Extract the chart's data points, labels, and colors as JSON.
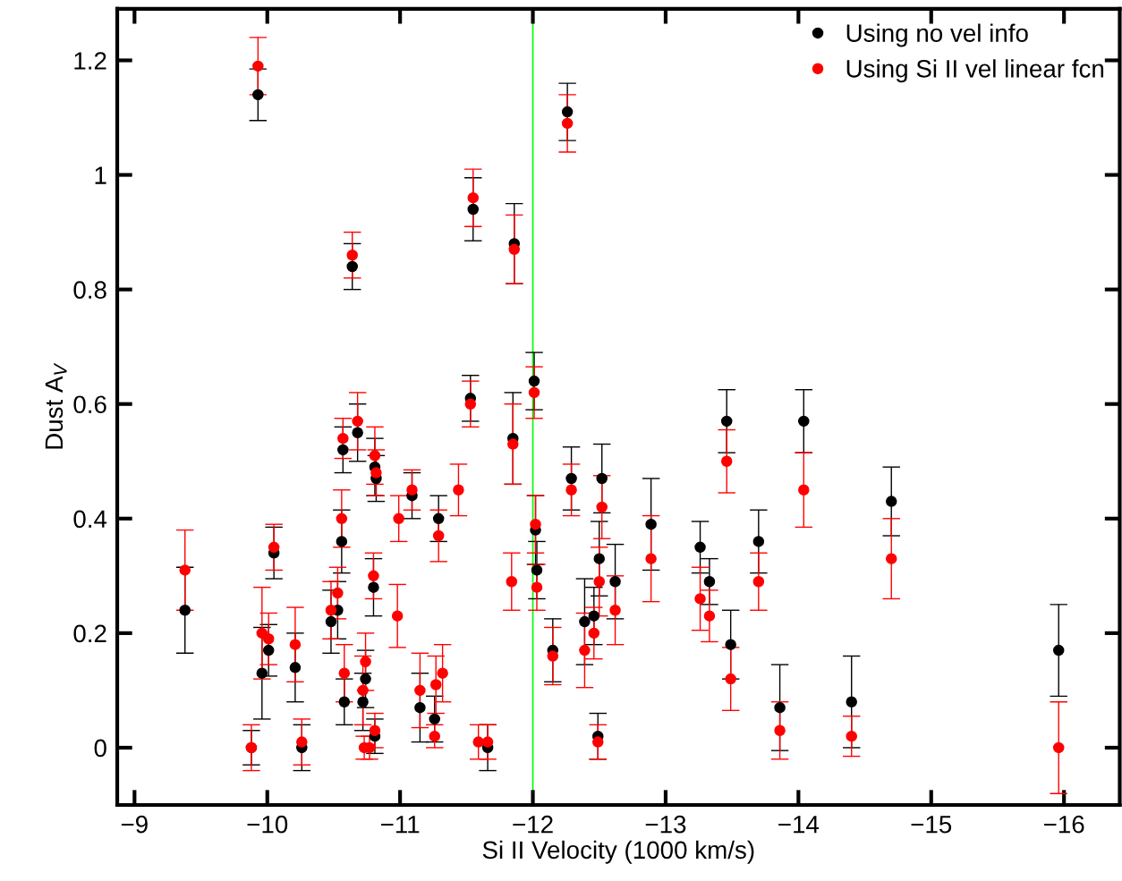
{
  "chart_data": {
    "type": "scatter",
    "xlabel": "Si II Velocity (1000 km/s)",
    "ylabel": "Dust A$_{V}$",
    "x": [
      -9.38,
      -9.88,
      -9.93,
      -9.96,
      -10.01,
      -10.05,
      -10.21,
      -10.26,
      -10.48,
      -10.53,
      -10.56,
      -10.57,
      -10.58,
      -10.64,
      -10.68,
      -10.72,
      -10.73,
      -10.74,
      -10.77,
      -10.8,
      -10.81,
      -10.81,
      -10.82,
      -10.98,
      -10.99,
      -11.09,
      -11.15,
      -11.26,
      -11.26,
      -11.27,
      -11.29,
      -11.32,
      -11.44,
      -11.53,
      -11.55,
      -11.59,
      -11.66,
      -11.84,
      -11.85,
      -11.86,
      -12.01,
      -12.02,
      -12.03,
      -12.15,
      -12.26,
      -12.29,
      -12.39,
      -12.46,
      -12.49,
      -12.5,
      -12.52,
      -12.62,
      -12.89,
      -13.26,
      -13.33,
      -13.46,
      -13.49,
      -13.7,
      -13.86,
      -14.04,
      -14.4,
      -14.7,
      -15.96
    ],
    "series": [
      {
        "name": "Using no vel info",
        "color": "#000000",
        "values": [
          0.24,
          0,
          1.14,
          0.13,
          0.17,
          0.34,
          0.14,
          0,
          0.22,
          0.24,
          0.36,
          0.52,
          0.08,
          0.84,
          0.55,
          0.08,
          null,
          0.12,
          null,
          0.28,
          0.02,
          0.49,
          0.47,
          null,
          null,
          0.44,
          0.07,
          0.05,
          null,
          null,
          0.4,
          null,
          null,
          0.61,
          0.94,
          null,
          0,
          null,
          0.54,
          0.88,
          0.64,
          0.38,
          0.31,
          0.17,
          1.11,
          0.47,
          0.22,
          0.23,
          0.02,
          0.33,
          0.47,
          0.29,
          0.39,
          0.35,
          0.29,
          0.57,
          0.18,
          0.36,
          0.07,
          0.57,
          0.08,
          0.43,
          0.17
        ],
        "errors": [
          0.075,
          0.03,
          0.045,
          0.08,
          0.045,
          0.045,
          0.06,
          0.04,
          0.055,
          0.05,
          0.055,
          0.04,
          0.04,
          0.04,
          0.05,
          0.05,
          null,
          0.05,
          null,
          0.05,
          0.03,
          0.05,
          0.04,
          null,
          null,
          0.04,
          0.06,
          0.04,
          null,
          null,
          0.04,
          null,
          null,
          0.04,
          0.055,
          null,
          0.04,
          null,
          0.08,
          0.07,
          0.05,
          0.06,
          0.05,
          0.055,
          0.05,
          0.055,
          0.075,
          0.05,
          0.04,
          0.065,
          0.06,
          0.065,
          0.08,
          0.045,
          0.04,
          0.055,
          0.06,
          0.055,
          0.075,
          0.055,
          0.08,
          0.06,
          0.08
        ]
      },
      {
        "name": "Using Si II vel linear fcn",
        "color": "#ff0000",
        "values": [
          0.31,
          0,
          1.19,
          0.2,
          0.19,
          0.35,
          0.18,
          0.01,
          0.24,
          0.27,
          0.4,
          0.54,
          0.13,
          0.86,
          0.57,
          0.1,
          0,
          0.15,
          0,
          0.3,
          0.03,
          0.51,
          0.48,
          0.23,
          0.4,
          0.45,
          0.1,
          null,
          0.02,
          0.11,
          0.37,
          0.13,
          0.45,
          0.6,
          0.96,
          0.01,
          0.01,
          0.29,
          0.53,
          0.87,
          0.62,
          0.39,
          0.28,
          0.16,
          1.09,
          0.45,
          0.17,
          0.2,
          0.01,
          0.29,
          0.42,
          0.24,
          0.33,
          0.26,
          0.23,
          0.5,
          0.12,
          0.29,
          0.03,
          0.45,
          0.02,
          0.33,
          0
        ],
        "errors": [
          0.07,
          0.04,
          0.05,
          0.08,
          0.045,
          0.04,
          0.065,
          0.04,
          0.05,
          0.045,
          0.05,
          0.035,
          0.05,
          0.04,
          0.05,
          0.06,
          0.02,
          0.05,
          0.02,
          0.04,
          0.03,
          0.05,
          0.04,
          0.055,
          0.04,
          0.035,
          0.065,
          null,
          0.02,
          0.05,
          0.045,
          0.05,
          0.045,
          0.04,
          0.05,
          0.03,
          0.03,
          0.05,
          0.07,
          0.06,
          0.045,
          0.05,
          0.04,
          0.05,
          0.05,
          0.045,
          0.065,
          0.045,
          0.03,
          0.06,
          0.055,
          0.06,
          0.075,
          0.055,
          0.045,
          0.055,
          0.055,
          0.05,
          0.05,
          0.065,
          0.035,
          0.07,
          0.08
        ]
      }
    ],
    "xlim": [
      -8.87,
      -16.42
    ],
    "ylim": [
      -0.1,
      1.29
    ],
    "xticks": [
      {
        "value": -9,
        "label": "−9"
      },
      {
        "value": -10,
        "label": "−10"
      },
      {
        "value": -11,
        "label": "−11"
      },
      {
        "value": -12,
        "label": "−12"
      },
      {
        "value": -13,
        "label": "−13"
      },
      {
        "value": -14,
        "label": "−14"
      },
      {
        "value": -15,
        "label": "−15"
      },
      {
        "value": -16,
        "label": "−16"
      }
    ],
    "yticks": [
      0,
      0.2,
      0.4,
      0.6,
      0.8,
      1,
      1.2
    ],
    "ref_lines": [
      {
        "axis": "x",
        "value": -12,
        "color": "#00ff00"
      }
    ],
    "marker": "circle",
    "legend": "top right",
    "grid": false
  }
}
